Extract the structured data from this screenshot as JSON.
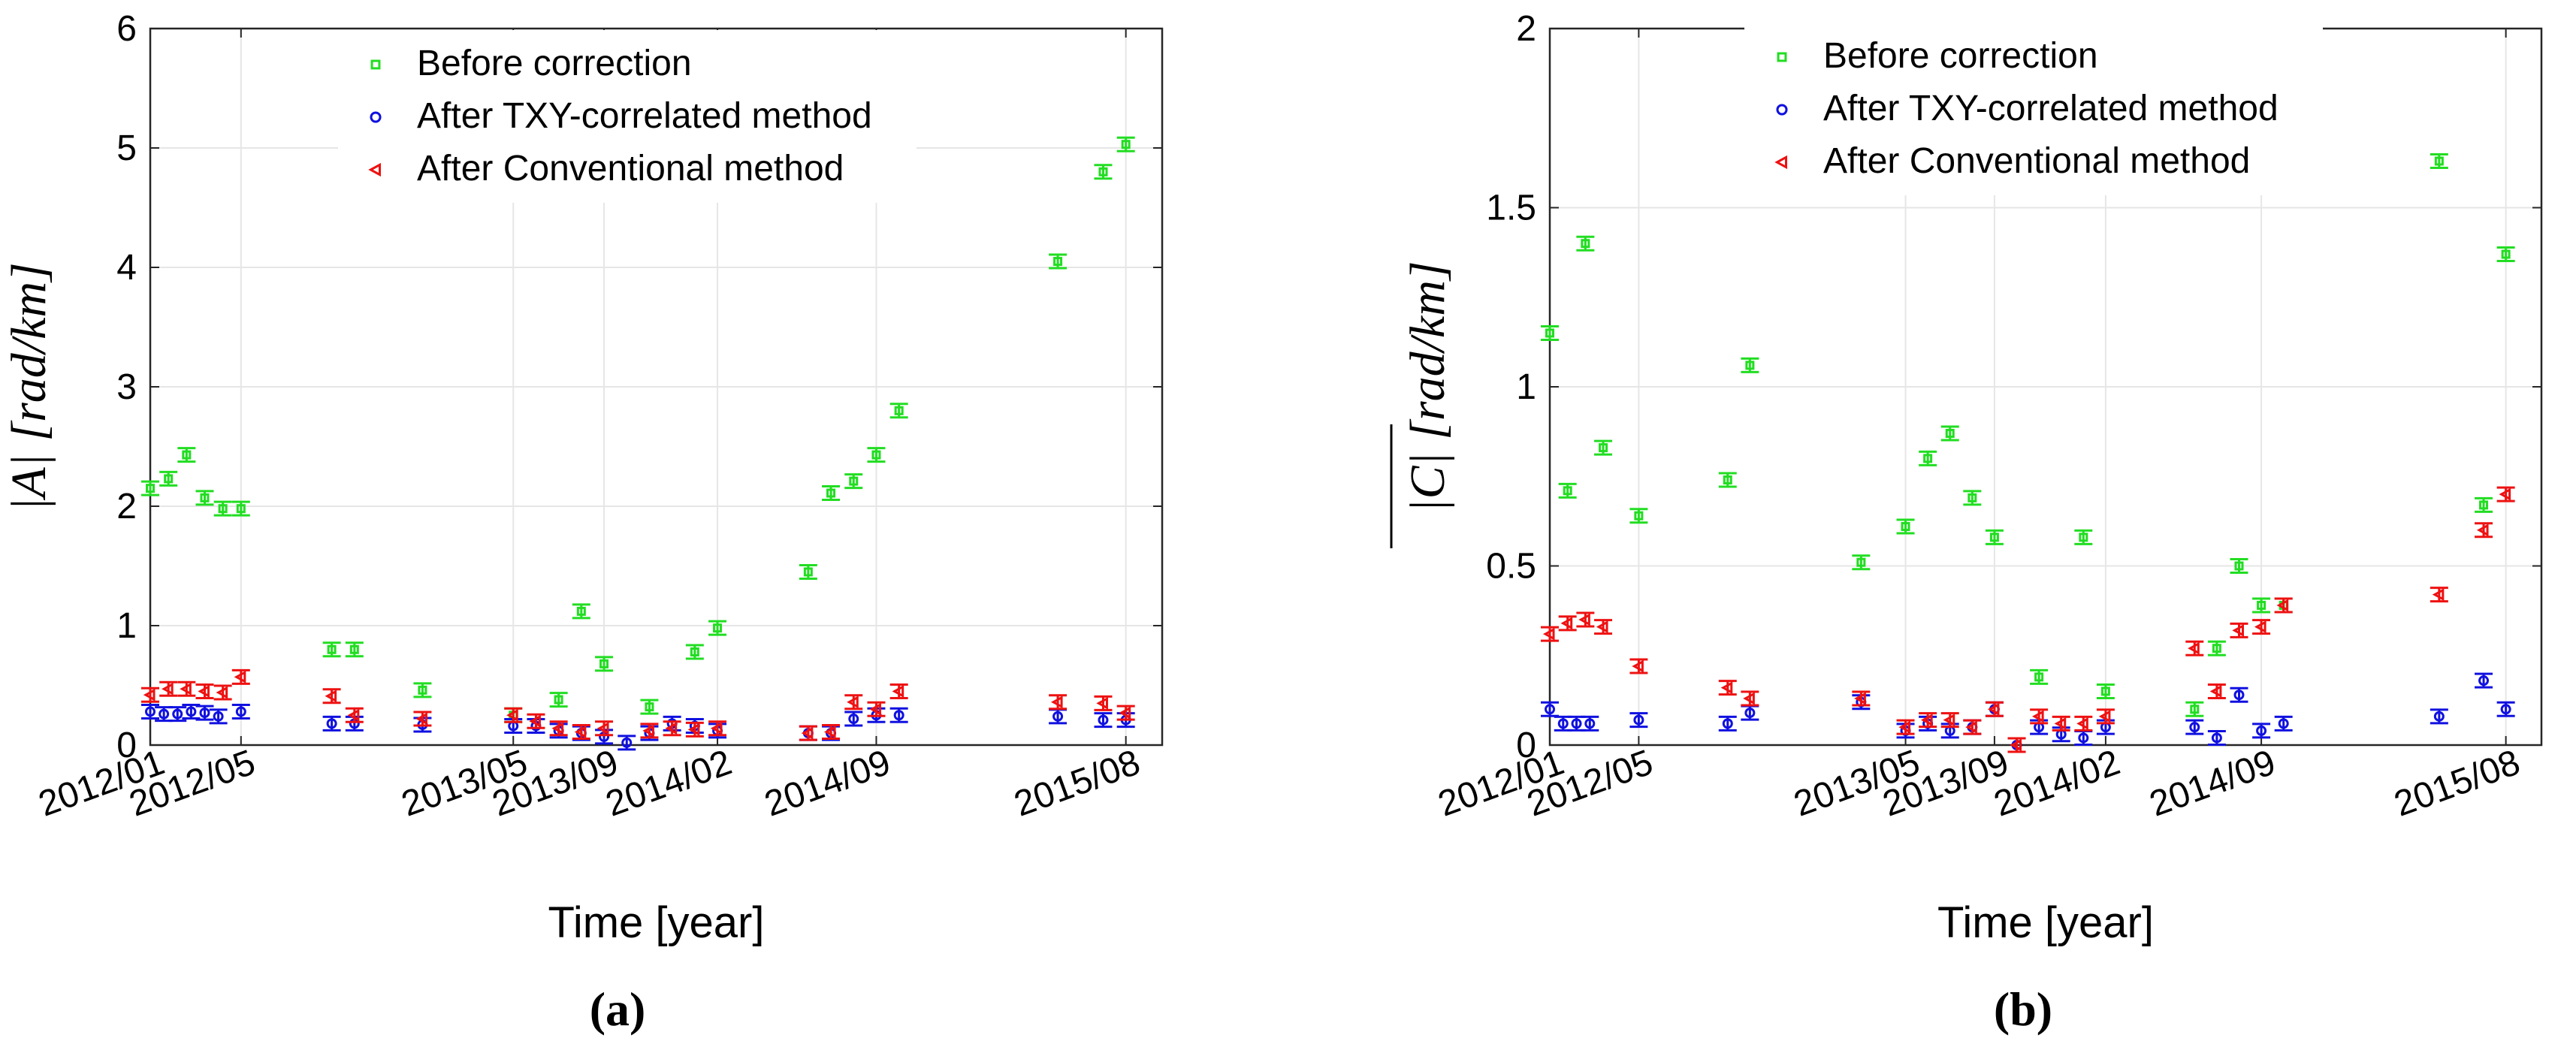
{
  "colors": {
    "before": "#22dd22",
    "txy": "#1010e0",
    "conventional": "#ee1111",
    "grid": "#e6e6e6",
    "axis": "#262626"
  },
  "chart_data": [
    {
      "type": "scatter",
      "panel_label": "(a)",
      "ylabel": "|A| [rad/km]",
      "xlabel": "Time [year]",
      "ylim": [
        0,
        6
      ],
      "yticks": [
        "0",
        "1",
        "2",
        "3",
        "4",
        "5",
        "6"
      ],
      "yticks_values": [
        0,
        1,
        2,
        3,
        4,
        5,
        6
      ],
      "xlim": [
        0,
        44.6
      ],
      "xticks": [
        {
          "label": "2012/01",
          "x": 0
        },
        {
          "label": "2012/05",
          "x": 4
        },
        {
          "label": "2013/05",
          "x": 16
        },
        {
          "label": "2013/09",
          "x": 20
        },
        {
          "label": "2014/02",
          "x": 25
        },
        {
          "label": "2014/09",
          "x": 32
        },
        {
          "label": "2015/08",
          "x": 43
        }
      ],
      "legend_position": "top-center",
      "series": [
        {
          "name": "Before correction",
          "marker": "square",
          "color_key": "before",
          "x": [
            0,
            0.8,
            1.6,
            2.4,
            3.2,
            4,
            8,
            9,
            12,
            16,
            18,
            19,
            20,
            22,
            24,
            25,
            29,
            30,
            31,
            32,
            33,
            40,
            42,
            43
          ],
          "y": [
            2.15,
            2.23,
            2.43,
            2.07,
            1.98,
            1.98,
            0.8,
            0.8,
            0.46,
            0.25,
            0.38,
            1.12,
            0.68,
            0.32,
            0.78,
            0.98,
            1.45,
            2.11,
            2.21,
            2.43,
            2.8,
            4.05,
            4.8,
            5.03
          ]
        },
        {
          "name": "After TXY-correlated method",
          "marker": "circle",
          "color_key": "txy",
          "x": [
            0,
            0.6,
            1.2,
            1.8,
            2.4,
            3.0,
            4,
            8,
            9,
            12,
            16,
            17,
            18,
            19,
            20,
            21,
            22,
            23,
            24,
            25,
            29,
            30,
            31,
            32,
            33,
            40,
            42,
            43
          ],
          "y": [
            0.28,
            0.26,
            0.26,
            0.28,
            0.27,
            0.24,
            0.28,
            0.18,
            0.18,
            0.17,
            0.16,
            0.16,
            0.12,
            0.1,
            0.07,
            0.02,
            0.1,
            0.18,
            0.16,
            0.12,
            0.1,
            0.1,
            0.22,
            0.25,
            0.25,
            0.24,
            0.21,
            0.21
          ]
        },
        {
          "name": "After Conventional method",
          "marker": "triangle-left",
          "color_key": "conventional",
          "x": [
            0,
            0.8,
            1.6,
            2.4,
            3.2,
            4,
            8,
            9,
            12,
            16,
            17,
            18,
            19,
            20,
            22,
            23,
            24,
            25,
            29,
            30,
            31,
            32,
            33,
            40,
            42,
            43
          ],
          "y": [
            0.42,
            0.47,
            0.47,
            0.45,
            0.44,
            0.57,
            0.41,
            0.25,
            0.22,
            0.25,
            0.2,
            0.14,
            0.11,
            0.14,
            0.12,
            0.14,
            0.13,
            0.14,
            0.1,
            0.11,
            0.36,
            0.3,
            0.45,
            0.36,
            0.35,
            0.27
          ]
        }
      ]
    },
    {
      "type": "scatter",
      "panel_label": "(b)",
      "ylabel": "|C| [rad/km]",
      "xlabel": "Time [year]",
      "ylim": [
        0,
        2
      ],
      "yticks": [
        "0",
        "0.5",
        "1",
        "1.5",
        "2"
      ],
      "yticks_values": [
        0,
        0.5,
        1,
        1.5,
        2
      ],
      "xlim": [
        0,
        44.6
      ],
      "xticks": [
        {
          "label": "2012/01",
          "x": 0
        },
        {
          "label": "2012/05",
          "x": 4
        },
        {
          "label": "2013/05",
          "x": 16
        },
        {
          "label": "2013/09",
          "x": 20
        },
        {
          "label": "2014/02",
          "x": 25
        },
        {
          "label": "2014/09",
          "x": 32
        },
        {
          "label": "2015/08",
          "x": 43
        }
      ],
      "legend_position": "top-center",
      "series": [
        {
          "name": "Before correction",
          "marker": "square",
          "color_key": "before",
          "x": [
            0,
            0.8,
            1.6,
            2.4,
            4,
            8,
            9,
            14,
            16,
            17,
            18,
            19,
            20,
            22,
            24,
            25,
            29,
            30,
            31,
            32,
            33,
            40,
            42,
            43
          ],
          "y": [
            1.15,
            0.71,
            1.4,
            0.83,
            0.64,
            0.74,
            1.06,
            0.51,
            0.61,
            0.8,
            0.87,
            0.69,
            0.58,
            0.19,
            0.58,
            0.15,
            0.1,
            0.27,
            0.5,
            0.39,
            0.39,
            1.63,
            0.67,
            1.37
          ]
        },
        {
          "name": "After TXY-correlated method",
          "marker": "circle",
          "color_key": "txy",
          "x": [
            0,
            0.6,
            1.2,
            1.8,
            4,
            8,
            9,
            14,
            16,
            17,
            18,
            19,
            20,
            21,
            22,
            23,
            24,
            25,
            29,
            30,
            31,
            32,
            33,
            40,
            42,
            43
          ],
          "y": [
            0.1,
            0.06,
            0.06,
            0.06,
            0.07,
            0.06,
            0.09,
            0.12,
            0.04,
            0.06,
            0.04,
            0.05,
            0.1,
            0.0,
            0.05,
            0.03,
            0.02,
            0.05,
            0.05,
            0.02,
            0.14,
            0.04,
            0.06,
            0.08,
            0.18,
            0.1
          ]
        },
        {
          "name": "After Conventional method",
          "marker": "triangle-left",
          "color_key": "conventional",
          "x": [
            0,
            0.8,
            1.6,
            2.4,
            4,
            8,
            9,
            14,
            16,
            17,
            18,
            19,
            20,
            21,
            22,
            23,
            24,
            25,
            29,
            30,
            31,
            32,
            33,
            40,
            42,
            43
          ],
          "y": [
            0.31,
            0.34,
            0.35,
            0.33,
            0.22,
            0.16,
            0.13,
            0.13,
            0.05,
            0.07,
            0.07,
            0.05,
            0.1,
            0.0,
            0.08,
            0.06,
            0.06,
            0.08,
            0.27,
            0.15,
            0.32,
            0.33,
            0.39,
            0.42,
            0.6,
            0.7
          ]
        }
      ]
    }
  ]
}
